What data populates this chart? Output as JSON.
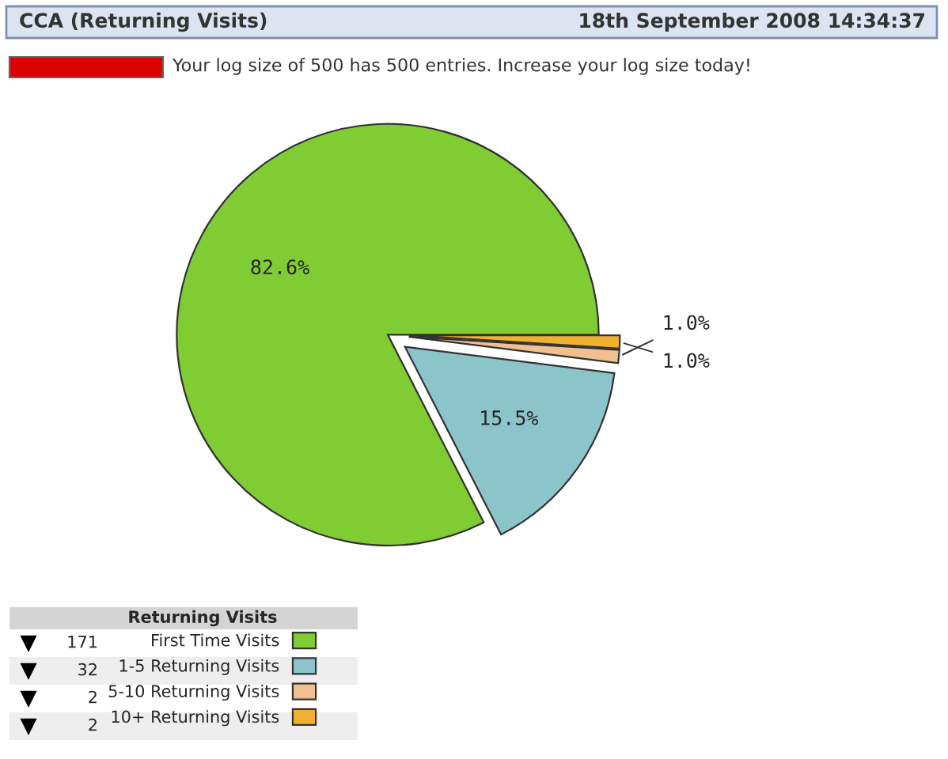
{
  "chart_data": {
    "type": "pie",
    "title": "CCA (Returning Visits)",
    "categories": [
      "First Time Visits",
      "1-5 Returning Visits",
      "5-10 Returning Visits",
      "10+ Returning Visits"
    ],
    "values": [
      82.6,
      15.5,
      1.0,
      1.0
    ],
    "colors": [
      "#80cc33",
      "#8cc4cc",
      "#f0c090",
      "#f0b030"
    ],
    "value_labels": [
      "82.6%",
      "15.5%",
      "1.0%",
      "1.0%"
    ],
    "totals": [
      "171",
      "32",
      "2",
      "2"
    ],
    "legend_title": "Returning Visits",
    "legend": "bottom left",
    "annotations": [
      "18th September 2008 14:34:37",
      "Your log size of 500 has 500 entries. Increase your log size today!"
    ]
  }
}
